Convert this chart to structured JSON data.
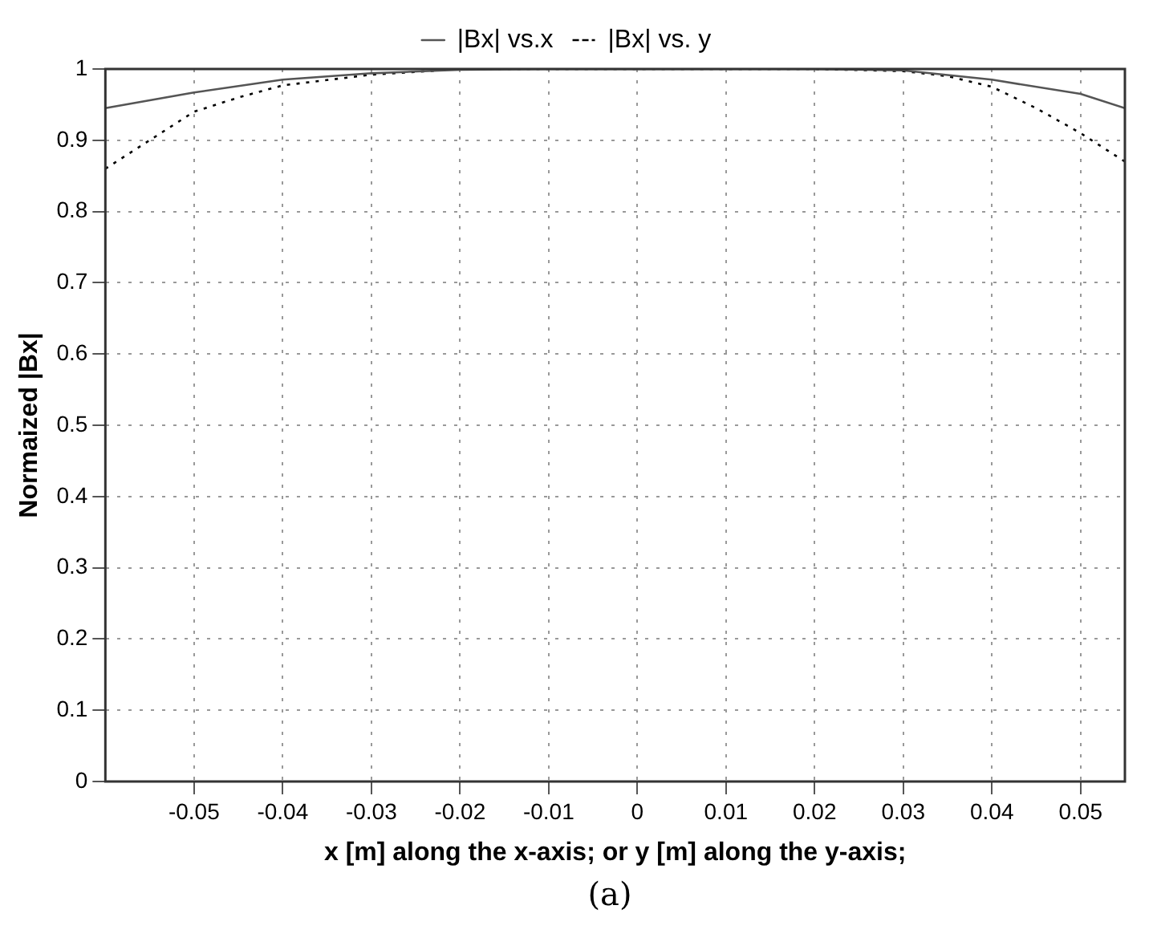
{
  "chart_data": {
    "type": "line",
    "xlabel": "x [m] along the x-axis; or y [m] along the y-axis;",
    "ylabel": "Normaized |Bx|",
    "annotations": [
      "(a)"
    ],
    "xlim": [
      -0.06,
      0.055
    ],
    "xticks": [
      -0.05,
      -0.04,
      -0.03,
      -0.02,
      -0.01,
      0,
      0.01,
      0.02,
      0.03,
      0.04,
      0.05
    ],
    "ylim": [
      0,
      1
    ],
    "yticks": [
      0,
      0.1,
      0.2,
      0.3,
      0.4,
      0.5,
      0.6,
      0.7,
      0.8,
      0.9,
      1
    ],
    "grid": true,
    "legend": "top",
    "marker": "none",
    "series": [
      {
        "name": "|Bx| vs.x",
        "color": "#555555",
        "line_style": "solid",
        "x": [
          -0.06,
          -0.05,
          -0.04,
          -0.03,
          -0.02,
          -0.01,
          0,
          0.01,
          0.02,
          0.03,
          0.04,
          0.05,
          0.055
        ],
        "values": [
          0.945,
          0.967,
          0.985,
          0.994,
          0.999,
          1,
          1,
          1,
          1,
          0.998,
          0.985,
          0.965,
          0.945
        ]
      },
      {
        "name": "|Bx| vs. y",
        "color": "#000000",
        "line_style": "dotted",
        "x": [
          -0.06,
          -0.055,
          -0.05,
          -0.045,
          -0.04,
          -0.03,
          -0.02,
          -0.01,
          0,
          0.01,
          0.02,
          0.03,
          0.035,
          0.04,
          0.045,
          0.05,
          0.055
        ],
        "values": [
          0.86,
          0.9,
          0.94,
          0.96,
          0.977,
          0.992,
          1,
          1,
          1,
          1,
          1,
          0.997,
          0.99,
          0.975,
          0.945,
          0.91,
          0.87
        ]
      }
    ]
  }
}
